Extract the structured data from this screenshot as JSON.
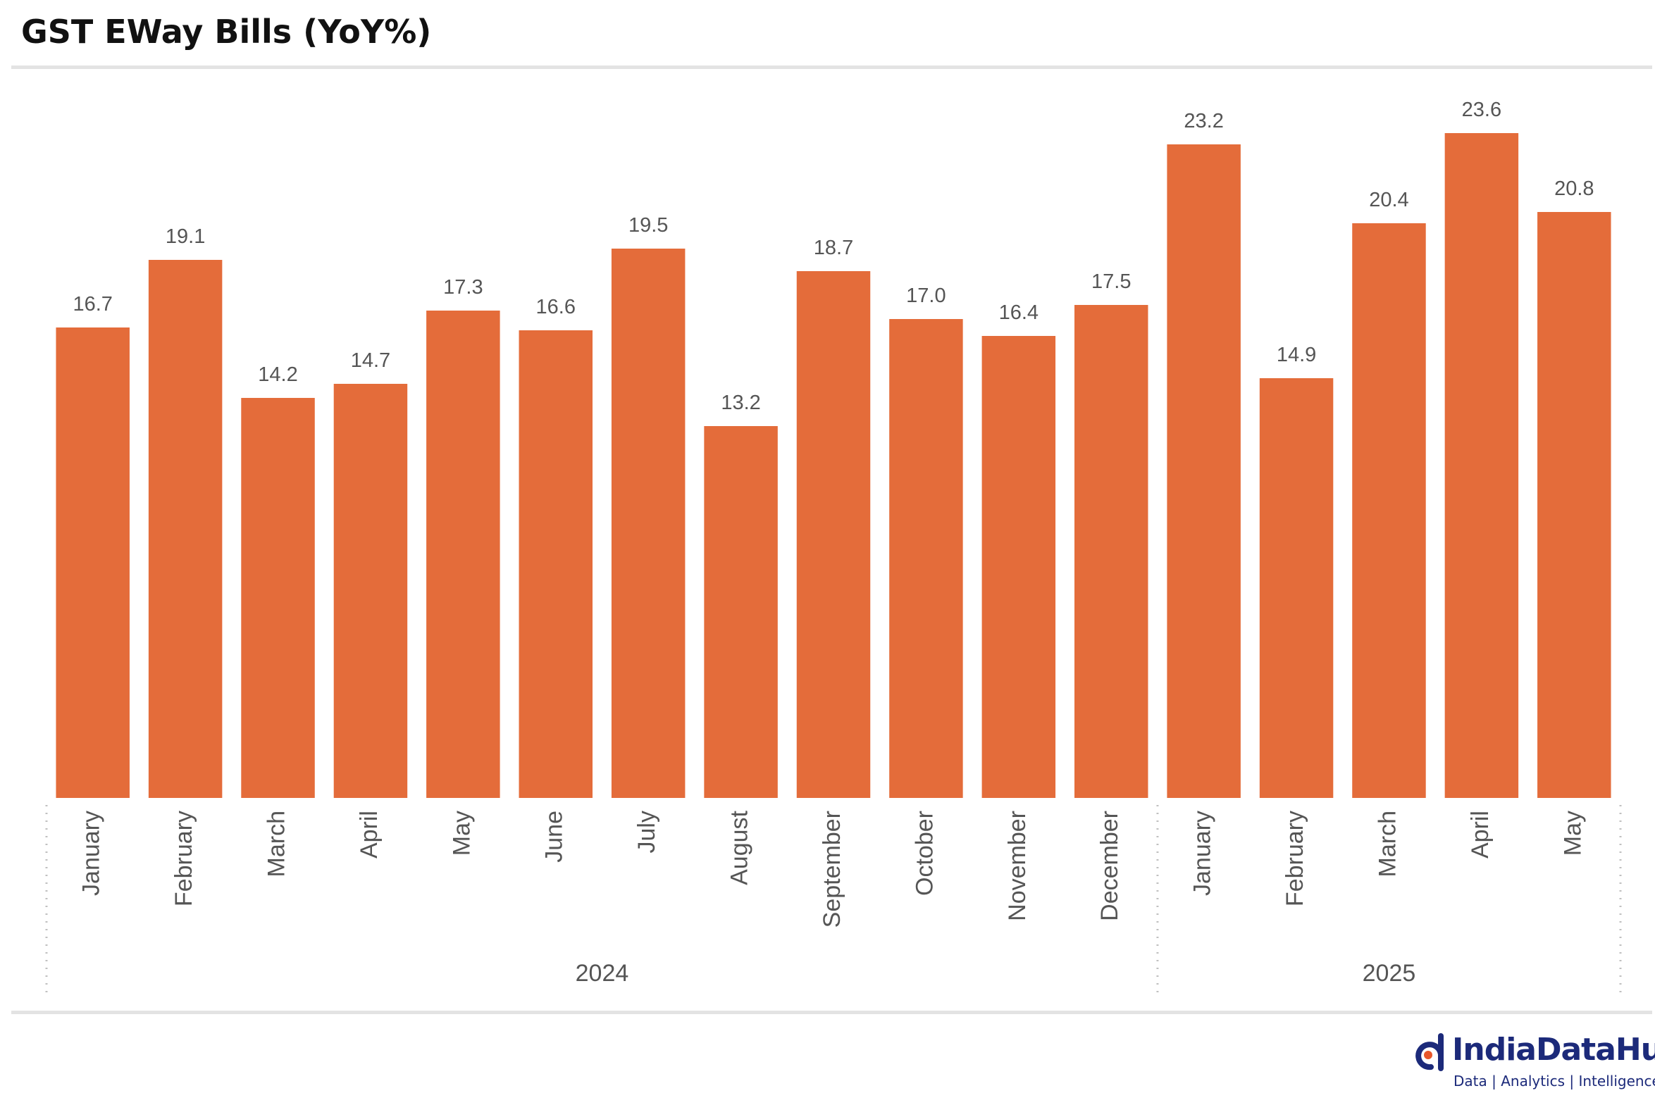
{
  "title": "GST EWay Bills (YoY%)",
  "brand": {
    "name": "IndiaDataHub",
    "tagline": "Data | Analytics | Intelligence",
    "color": "#1c2a7a",
    "accent": "#e8562a",
    "icon": "indiadatahub-logo-icon"
  },
  "chart_data": {
    "type": "bar",
    "bar_color": "#e46c3a",
    "categories": [
      "January",
      "February",
      "March",
      "April",
      "May",
      "June",
      "July",
      "August",
      "September",
      "October",
      "November",
      "December",
      "January",
      "February",
      "March",
      "April",
      "May"
    ],
    "groups": [
      {
        "label": "2024",
        "count": 12
      },
      {
        "label": "2025",
        "count": 5
      }
    ],
    "values": [
      16.7,
      19.1,
      14.2,
      14.7,
      17.3,
      16.6,
      19.5,
      13.2,
      18.7,
      17.0,
      16.4,
      17.5,
      23.2,
      14.9,
      20.4,
      23.6,
      20.8
    ],
    "value_labels": [
      "16.7",
      "19.1",
      "14.2",
      "14.7",
      "17.3",
      "16.6",
      "19.5",
      "13.2",
      "18.7",
      "17.0",
      "16.4",
      "17.5",
      "23.2",
      "14.9",
      "20.4",
      "23.6",
      "20.8"
    ],
    "ylim": [
      0,
      25
    ],
    "grid": false,
    "legend": "none"
  }
}
